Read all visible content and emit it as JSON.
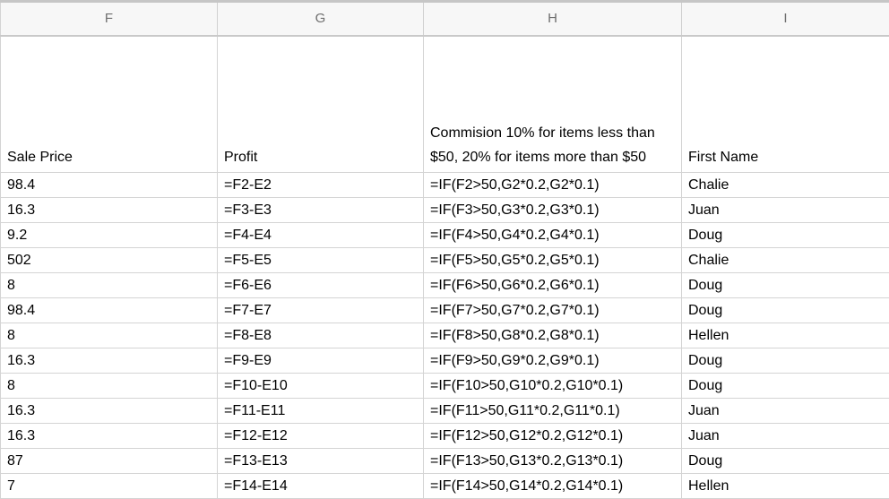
{
  "columns": [
    "F",
    "G",
    "H",
    "I"
  ],
  "header_row": {
    "sale_price": "Sale Price",
    "profit": "Profit",
    "commission_line1": "Commision 10% for items less than",
    "commission_line2": "$50, 20% for items more than $50",
    "first_name": "First Name"
  },
  "rows": [
    {
      "sale_price": "98.4",
      "profit": "=F2-E2",
      "commission": "=IF(F2>50,G2*0.2,G2*0.1)",
      "first_name": "Chalie"
    },
    {
      "sale_price": "16.3",
      "profit": "=F3-E3",
      "commission": "=IF(F3>50,G3*0.2,G3*0.1)",
      "first_name": "Juan"
    },
    {
      "sale_price": "9.2",
      "profit": "=F4-E4",
      "commission": "=IF(F4>50,G4*0.2,G4*0.1)",
      "first_name": "Doug"
    },
    {
      "sale_price": "502",
      "profit": "=F5-E5",
      "commission": "=IF(F5>50,G5*0.2,G5*0.1)",
      "first_name": "Chalie"
    },
    {
      "sale_price": "8",
      "profit": "=F6-E6",
      "commission": "=IF(F6>50,G6*0.2,G6*0.1)",
      "first_name": "Doug"
    },
    {
      "sale_price": "98.4",
      "profit": "=F7-E7",
      "commission": "=IF(F7>50,G7*0.2,G7*0.1)",
      "first_name": "Doug"
    },
    {
      "sale_price": "8",
      "profit": "=F8-E8",
      "commission": "=IF(F8>50,G8*0.2,G8*0.1)",
      "first_name": "Hellen"
    },
    {
      "sale_price": "16.3",
      "profit": "=F9-E9",
      "commission": "=IF(F9>50,G9*0.2,G9*0.1)",
      "first_name": "Doug"
    },
    {
      "sale_price": "8",
      "profit": "=F10-E10",
      "commission": "=IF(F10>50,G10*0.2,G10*0.1)",
      "first_name": "Doug"
    },
    {
      "sale_price": "16.3",
      "profit": "=F11-E11",
      "commission": "=IF(F11>50,G11*0.2,G11*0.1)",
      "first_name": "Juan"
    },
    {
      "sale_price": "16.3",
      "profit": "=F12-E12",
      "commission": "=IF(F12>50,G12*0.2,G12*0.1)",
      "first_name": "Juan"
    },
    {
      "sale_price": "87",
      "profit": "=F13-E13",
      "commission": "=IF(F13>50,G13*0.2,G13*0.1)",
      "first_name": "Doug"
    },
    {
      "sale_price": "7",
      "profit": "=F14-E14",
      "commission": "=IF(F14>50,G14*0.2,G14*0.1)",
      "first_name": "Hellen"
    }
  ]
}
